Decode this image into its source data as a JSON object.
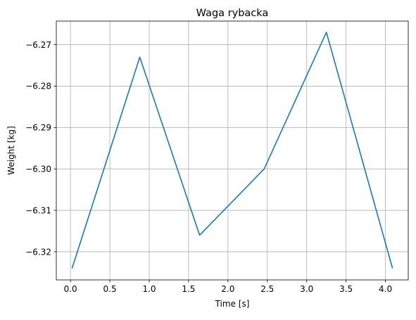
{
  "chart_data": {
    "type": "line",
    "title": "Waga rybacka",
    "xlabel": "Time [s]",
    "ylabel": "Weight [kg]",
    "xlim": [
      -0.18,
      4.29
    ],
    "ylim": [
      -6.3268,
      -6.2643
    ],
    "xticks": [
      0.0,
      0.5,
      1.0,
      1.5,
      2.0,
      2.5,
      3.0,
      3.5,
      4.0
    ],
    "xtick_labels": [
      "0.0",
      "0.5",
      "1.0",
      "1.5",
      "2.0",
      "2.5",
      "3.0",
      "3.5",
      "4.0"
    ],
    "yticks": [
      -6.32,
      -6.31,
      -6.3,
      -6.29,
      -6.28,
      -6.27
    ],
    "ytick_labels": [
      "−6.32",
      "−6.31",
      "−6.30",
      "−6.29",
      "−6.28",
      "−6.27"
    ],
    "grid": true,
    "series": [
      {
        "color": "#1f77b4",
        "x": [
          0.02,
          0.88,
          1.64,
          2.46,
          3.25,
          4.09
        ],
        "y": [
          -6.324,
          -6.273,
          -6.316,
          -6.3,
          -6.267,
          -6.324
        ]
      }
    ]
  }
}
